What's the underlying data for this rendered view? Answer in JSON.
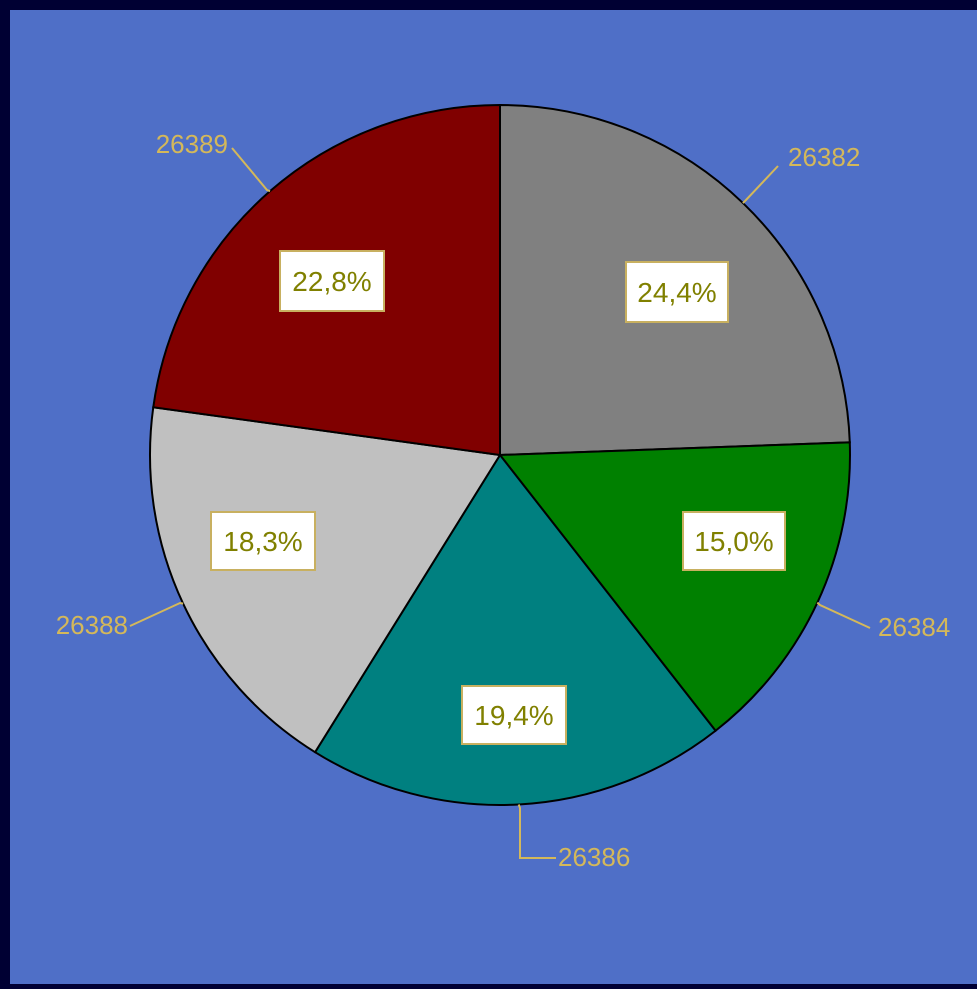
{
  "chart_data": {
    "type": "pie",
    "title": "",
    "slices": [
      {
        "label": "26382",
        "value": 24.4,
        "percent_label": "24,4%",
        "color": "#808080"
      },
      {
        "label": "26384",
        "value": 15.0,
        "percent_label": "15,0%",
        "color": "#008000"
      },
      {
        "label": "26386",
        "value": 19.4,
        "percent_label": "19,4%",
        "color": "#008080"
      },
      {
        "label": "26388",
        "value": 18.3,
        "percent_label": "18,3%",
        "color": "#C0C0C0"
      },
      {
        "label": "26389",
        "value": 22.8,
        "percent_label": "22,8%",
        "color": "#800000"
      }
    ],
    "legend": "none"
  },
  "colors": {
    "outer_background": "#000033",
    "plot_background": "#4F6FC7",
    "category_label": "#D4B85A",
    "percent_text": "#808000",
    "percent_box_fill": "#FFFFFF",
    "percent_box_border": "#C8B060",
    "slice_outline": "#000000"
  }
}
